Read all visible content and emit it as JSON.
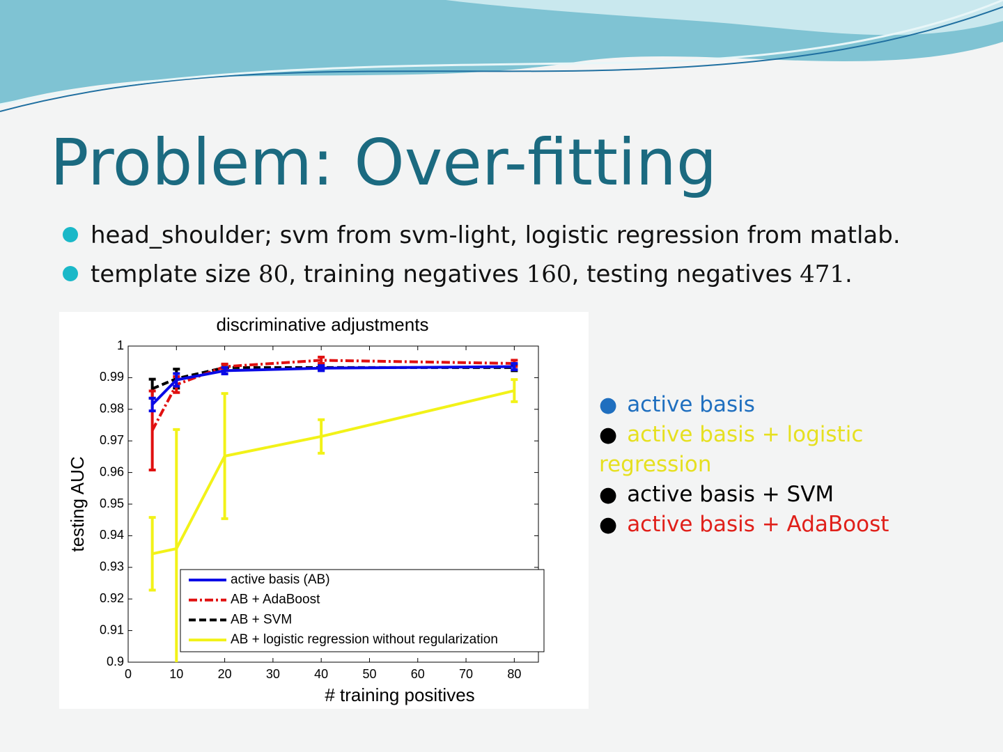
{
  "slide": {
    "title": "Problem: Over-fitting",
    "bullets": [
      [
        "head_shoulder; svm from svm-light, logistic regression from matlab."
      ],
      [
        "template size ",
        "80",
        ", training negatives ",
        "160",
        ", testing negatives ",
        "471",
        "."
      ]
    ],
    "side_legend": [
      {
        "text": "active basis",
        "color": "#1f6fbf",
        "bullet_color": "#1f6fbf"
      },
      {
        "text": "active basis + logistic regression",
        "color": "#e6e020",
        "bullet_color": "#000000"
      },
      {
        "text": "active basis + SVM",
        "color": "#000000",
        "bullet_color": "#000000"
      },
      {
        "text": "active basis + AdaBoost",
        "color": "#e0201a",
        "bullet_color": "#000000"
      }
    ]
  },
  "chart_data": {
    "type": "line",
    "title": "discriminative adjustments",
    "x_label": "# training positives",
    "y_label": "testing AUC",
    "x": [
      5,
      10,
      20,
      40,
      80
    ],
    "xlim": [
      0,
      85
    ],
    "xticks": [
      0,
      10,
      20,
      30,
      40,
      50,
      60,
      70,
      80
    ],
    "ylim": [
      0.9,
      1
    ],
    "yticks": [
      0.9,
      0.91,
      0.92,
      0.93,
      0.94,
      0.95,
      0.96,
      0.97,
      0.98,
      0.99,
      1
    ],
    "legend": "lower right",
    "series": [
      {
        "name": "active basis (AB)",
        "color": "#0a0ae6",
        "style": "solid",
        "values": [
          0.9815,
          0.9893,
          0.9922,
          0.993,
          0.9935
        ],
        "errors": [
          0.002,
          0.002,
          0.001,
          0.0008,
          0.001
        ]
      },
      {
        "name": "AB + AdaBoost",
        "color": "#e01010",
        "style": "dashdot",
        "values": [
          0.9733,
          0.9878,
          0.9935,
          0.9955,
          0.9945
        ],
        "errors": [
          0.0125,
          0.0025,
          0.0008,
          0.001,
          0.001
        ]
      },
      {
        "name": "AB + SVM",
        "color": "#000000",
        "style": "dashed",
        "values": [
          0.9865,
          0.9897,
          0.9932,
          0.9932,
          0.9932
        ],
        "errors": [
          0.003,
          0.003,
          0.001,
          0.0008,
          0.001
        ]
      },
      {
        "name": "AB + logistic regression without regularization",
        "color": "#f2f218",
        "style": "solid",
        "values": [
          0.9343,
          0.9359,
          0.9652,
          0.9714,
          0.9859
        ],
        "errors": [
          0.0115,
          0.0377,
          0.0198,
          0.0053,
          0.0035
        ]
      }
    ]
  }
}
